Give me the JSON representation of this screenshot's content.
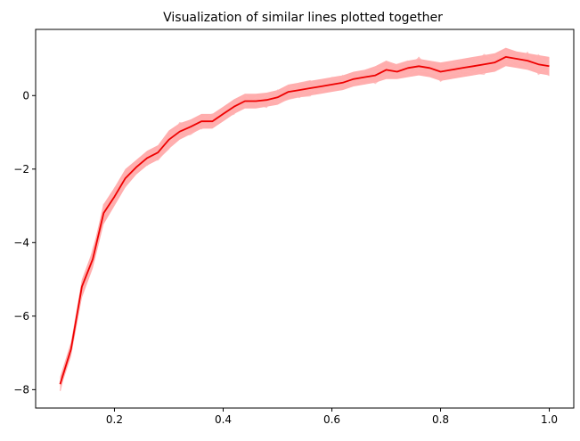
{
  "chart_data": {
    "type": "line",
    "title": "Visualization of similar lines plotted together",
    "xlabel": "",
    "ylabel": "",
    "xlim": [
      0.055,
      1.045
    ],
    "ylim": [
      -8.5,
      1.8
    ],
    "xticks": [
      0.2,
      0.4,
      0.6,
      0.8,
      1.0
    ],
    "xtick_labels": [
      "0.2",
      "0.4",
      "0.6",
      "0.8",
      "1.0"
    ],
    "yticks": [
      -8,
      -6,
      -4,
      -2,
      0
    ],
    "ytick_labels": [
      "−8",
      "−6",
      "−4",
      "−2",
      "0"
    ],
    "grid": false,
    "legend": "none",
    "colors": {
      "main_line": "#ee0000",
      "band_fill": "#ff7777",
      "faint_lines": "#ffb0b0"
    },
    "x": [
      0.1,
      0.12,
      0.14,
      0.16,
      0.18,
      0.2,
      0.22,
      0.24,
      0.26,
      0.28,
      0.3,
      0.32,
      0.34,
      0.36,
      0.38,
      0.4,
      0.42,
      0.44,
      0.46,
      0.48,
      0.5,
      0.52,
      0.54,
      0.56,
      0.58,
      0.6,
      0.62,
      0.64,
      0.66,
      0.68,
      0.7,
      0.72,
      0.74,
      0.76,
      0.78,
      0.8,
      0.82,
      0.84,
      0.86,
      0.88,
      0.9,
      0.92,
      0.94,
      0.96,
      0.98,
      1.0
    ],
    "mean": [
      -7.85,
      -6.9,
      -5.2,
      -4.45,
      -3.2,
      -2.75,
      -2.25,
      -1.95,
      -1.7,
      -1.55,
      -1.2,
      -0.98,
      -0.85,
      -0.7,
      -0.7,
      -0.5,
      -0.3,
      -0.15,
      -0.15,
      -0.12,
      -0.05,
      0.1,
      0.15,
      0.2,
      0.25,
      0.3,
      0.35,
      0.45,
      0.5,
      0.55,
      0.7,
      0.65,
      0.75,
      0.8,
      0.75,
      0.65,
      0.7,
      0.75,
      0.8,
      0.85,
      0.9,
      1.05,
      1.0,
      0.95,
      0.85,
      0.8
    ],
    "band_lower": [
      -8.0,
      -7.1,
      -5.5,
      -4.7,
      -3.5,
      -3.0,
      -2.5,
      -2.15,
      -1.9,
      -1.75,
      -1.45,
      -1.2,
      -1.05,
      -0.9,
      -0.9,
      -0.7,
      -0.5,
      -0.35,
      -0.35,
      -0.3,
      -0.25,
      -0.1,
      -0.05,
      0.0,
      0.05,
      0.1,
      0.15,
      0.25,
      0.3,
      0.35,
      0.45,
      0.45,
      0.5,
      0.55,
      0.5,
      0.4,
      0.45,
      0.5,
      0.55,
      0.6,
      0.65,
      0.8,
      0.75,
      0.7,
      0.6,
      0.55
    ],
    "band_upper": [
      -7.65,
      -6.7,
      -5.0,
      -4.2,
      -2.95,
      -2.5,
      -2.0,
      -1.75,
      -1.5,
      -1.35,
      -0.95,
      -0.75,
      -0.65,
      -0.5,
      -0.5,
      -0.3,
      -0.1,
      0.05,
      0.05,
      0.08,
      0.15,
      0.3,
      0.35,
      0.4,
      0.45,
      0.5,
      0.55,
      0.65,
      0.7,
      0.8,
      0.95,
      0.85,
      0.95,
      1.0,
      0.95,
      0.9,
      0.95,
      1.0,
      1.05,
      1.1,
      1.15,
      1.3,
      1.2,
      1.15,
      1.1,
      1.05
    ]
  }
}
